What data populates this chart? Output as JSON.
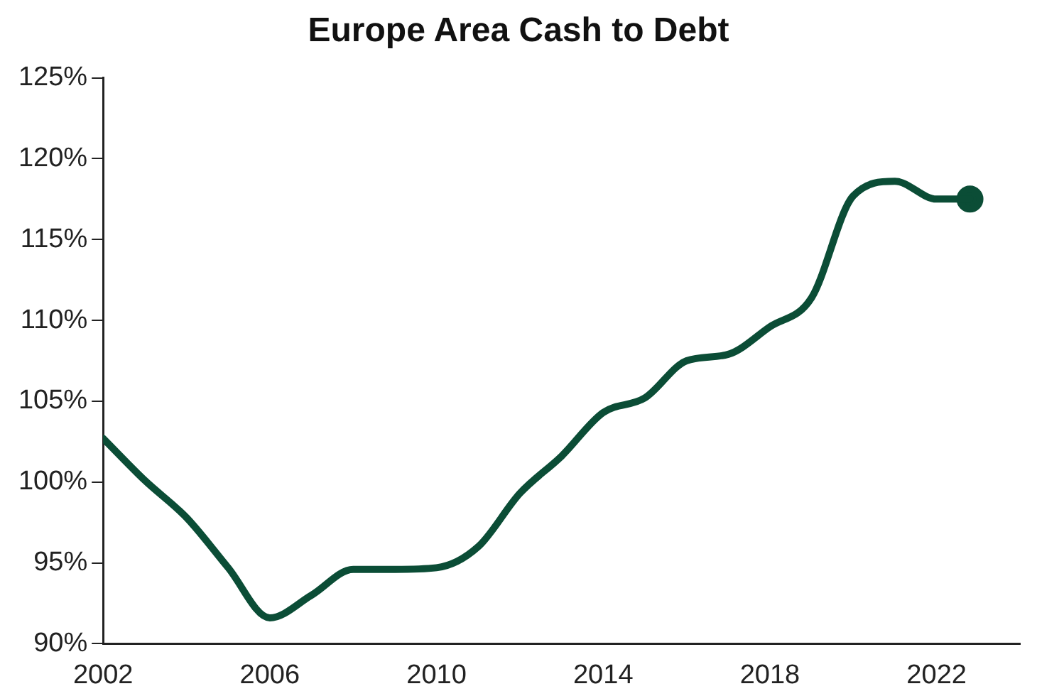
{
  "chart_data": {
    "type": "line",
    "title": "Europe Area Cash to Debt",
    "x": [
      2002,
      2003,
      2004,
      2005,
      2006,
      2007,
      2008,
      2009,
      2010,
      2011,
      2012,
      2013,
      2014,
      2015,
      2016,
      2017,
      2018,
      2019,
      2020,
      2021,
      2022,
      2022.8
    ],
    "series": [
      {
        "color": "#0b4d36",
        "values": [
          102.7,
          100.1,
          97.8,
          94.7,
          91.6,
          93.0,
          94.6,
          94.6,
          94.7,
          96.0,
          99.3,
          101.6,
          104.3,
          105.2,
          107.5,
          107.9,
          109.6,
          111.4,
          117.7,
          118.6,
          117.5,
          117.5
        ]
      },
      {
        "type": "scatter",
        "color": "#0b4d36",
        "marker": "circle",
        "x": [
          2022.8
        ],
        "values": [
          117.5
        ]
      }
    ],
    "xlim": [
      2002,
      2024
    ],
    "xticks": [
      2002,
      2006,
      2010,
      2014,
      2018,
      2022
    ],
    "ylim": [
      90,
      125
    ],
    "yticks": [
      {
        "value": 90,
        "label": "90%"
      },
      {
        "value": 95,
        "label": "95%"
      },
      {
        "value": 100,
        "label": "100%"
      },
      {
        "value": 105,
        "label": "105%"
      },
      {
        "value": 110,
        "label": "110%"
      },
      {
        "value": 115,
        "label": "115%"
      },
      {
        "value": 120,
        "label": "120%"
      },
      {
        "value": 125,
        "label": "125%"
      }
    ],
    "grid": false,
    "legend": false,
    "line_style": "solid"
  }
}
